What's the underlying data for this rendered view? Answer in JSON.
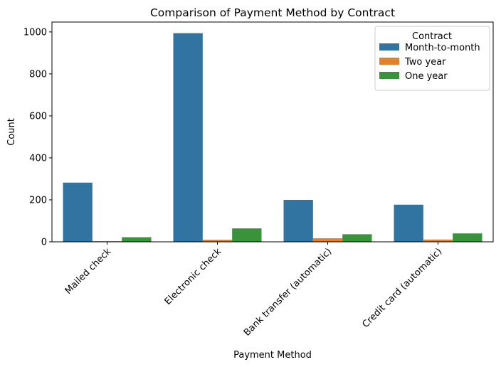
{
  "chart_data": {
    "type": "bar",
    "title": "Comparison of Payment Method by Contract",
    "xlabel": "Payment Method",
    "ylabel": "Count",
    "categories": [
      "Mailed check",
      "Electronic check",
      "Bank transfer (automatic)",
      "Credit card (automatic)"
    ],
    "series": [
      {
        "name": "Month-to-month",
        "color": "#3274a1",
        "values": [
          282,
          994,
          200,
          177
        ]
      },
      {
        "name": "Two year",
        "color": "#e1812c",
        "values": [
          3,
          10,
          17,
          11
        ]
      },
      {
        "name": "One year",
        "color": "#3a923a",
        "values": [
          22,
          64,
          36,
          40
        ]
      }
    ],
    "ylim": [
      0,
      1000
    ],
    "yticks": [
      0,
      200,
      400,
      600,
      800,
      1000
    ],
    "grid": false,
    "legend": {
      "title": "Contract",
      "placement": "top-right"
    },
    "xtick_rotation": 45
  }
}
